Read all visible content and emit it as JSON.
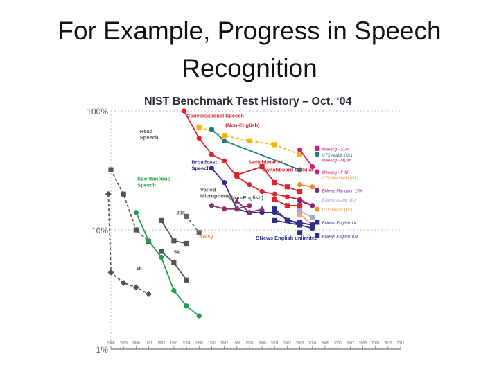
{
  "slide": {
    "title_line1": "For Example, Progress in Speech",
    "title_line2": "Recognition"
  },
  "chart_data": {
    "type": "line",
    "title": "NIST Benchmark Test History – Oct. ‘04",
    "yscale": "log",
    "ylim": [
      1,
      100
    ],
    "y_ticks": [
      {
        "value": 100,
        "label": "100%"
      },
      {
        "value": 10,
        "label": "10%"
      },
      {
        "value": 1,
        "label": "1%"
      }
    ],
    "x_years": [
      "1988",
      "1989",
      "1990",
      "1991",
      "1992",
      "1993",
      "1994",
      "1995",
      "1996",
      "1997",
      "1998",
      "1999",
      "2000",
      "2001",
      "2002",
      "2003",
      "2004",
      "2005",
      "2006",
      "2007",
      "2008",
      "2009",
      "2010",
      "2011"
    ],
    "colors": {
      "conversational": "#d7262e",
      "read": "#555555",
      "spontaneous": "#1e9e4a",
      "broadcast": "#2e2e8a",
      "varied": "#8a2e6e",
      "noisy": "#666666",
      "ctsarabic": "#1a7f7a",
      "meeting": "#d6187e",
      "yellow": "#f7b500",
      "orange": "#f18a2a",
      "mandarin": "#7a2a8a",
      "ctschinese": "#f3a07a",
      "lavender": "#a8a8d6",
      "grid": "#bdbdbd"
    },
    "series": [
      {
        "key": "conversational",
        "name": "Conversational Speech",
        "color_key": "conversational",
        "marker": "circle",
        "dashed": false,
        "points": [
          [
            1993.8,
            100
          ],
          [
            1995,
            59
          ],
          [
            1996,
            43
          ],
          [
            1997,
            38
          ],
          [
            1998,
            28
          ],
          [
            1999,
            24
          ],
          [
            2000,
            21
          ],
          [
            2001,
            20
          ],
          [
            2002,
            19
          ],
          [
            2003,
            18
          ],
          [
            2004,
            16
          ]
        ]
      },
      {
        "key": "switchboard-ii",
        "name": "Switchboard II",
        "color_key": "conversational",
        "marker": "square",
        "dashed": false,
        "points": [
          [
            1998,
            29
          ],
          [
            2000,
            34
          ],
          [
            2001,
            25
          ],
          [
            2002,
            23
          ],
          [
            2003,
            21
          ]
        ]
      },
      {
        "key": "switchboard-cellular",
        "name": "Switchboard Cellular",
        "color_key": "conversational",
        "marker": "square",
        "dashed": false,
        "points": [
          [
            2001,
            18
          ],
          [
            2002,
            16
          ],
          [
            2003,
            16
          ]
        ]
      },
      {
        "key": "non-english-conv",
        "name": "(Non-English)",
        "color_key": "yellow",
        "marker": "square",
        "dashed": true,
        "points": [
          [
            1995,
            73
          ],
          [
            1997,
            62
          ],
          [
            1999,
            56
          ],
          [
            2001,
            52
          ],
          [
            2003,
            43
          ]
        ]
      },
      {
        "key": "cts-arabic",
        "name": "CTS Arabic (UL)",
        "color_key": "ctsarabic",
        "marker": "circle",
        "dashed": false,
        "points": [
          [
            1996,
            70
          ],
          [
            1997,
            56
          ],
          [
            2003,
            32
          ]
        ]
      },
      {
        "key": "read-speech",
        "name": "Read Speech",
        "color_key": "read",
        "marker": "square",
        "dashed": true,
        "points": [
          [
            1988,
            32
          ],
          [
            1989,
            20
          ],
          [
            1990,
            10
          ],
          [
            1991,
            8
          ]
        ]
      },
      {
        "key": "read-20k",
        "name": "20k",
        "color_key": "read",
        "marker": "square",
        "dashed": false,
        "points": [
          [
            1992,
            12
          ],
          [
            1993,
            8.1
          ],
          [
            1994,
            7.7
          ]
        ]
      },
      {
        "key": "read-5k",
        "name": "5k",
        "color_key": "read",
        "marker": "square",
        "dashed": false,
        "points": [
          [
            1992,
            6.6
          ],
          [
            1993,
            5.3
          ],
          [
            1994,
            3.8
          ]
        ]
      },
      {
        "key": "read-1k",
        "name": "1k",
        "color_key": "read",
        "marker": "diamond",
        "dashed": true,
        "points": [
          [
            1987.8,
            20
          ],
          [
            1988,
            4.4
          ],
          [
            1989,
            3.6
          ],
          [
            1990,
            3.3
          ],
          [
            1991,
            2.9
          ]
        ]
      },
      {
        "key": "spontaneous",
        "name": "Spontaneous Speech",
        "color_key": "spontaneous",
        "marker": "circle",
        "dashed": false,
        "points": [
          [
            1990,
            14
          ],
          [
            1991,
            8.1
          ],
          [
            1992,
            5.9
          ],
          [
            1993,
            3.1
          ],
          [
            1994,
            2.3
          ],
          [
            1995,
            1.9
          ]
        ]
      },
      {
        "key": "broadcast",
        "name": "Broadcast Speech",
        "color_key": "broadcast",
        "marker": "circle",
        "dashed": false,
        "points": [
          [
            1996,
            33
          ],
          [
            1997,
            25
          ],
          [
            1998,
            15
          ],
          [
            1999,
            14
          ],
          [
            2000,
            14
          ],
          [
            2001,
            14
          ],
          [
            2003,
            11
          ],
          [
            2004,
            10.3
          ]
        ]
      },
      {
        "key": "varied-mics",
        "name": "Varied Microphones",
        "color_key": "varied",
        "marker": "circle",
        "dashed": false,
        "points": [
          [
            1996,
            16
          ],
          [
            1997,
            15
          ],
          [
            1998,
            15
          ],
          [
            1999,
            16
          ]
        ]
      },
      {
        "key": "non-english-bn",
        "name": "(Non-English)",
        "color_key": "varied",
        "marker": "triangle",
        "dashed": false,
        "points": [
          [
            1998,
            17.5
          ],
          [
            1999,
            14
          ],
          [
            2000,
            15
          ]
        ]
      },
      {
        "key": "noisy",
        "name": "Noisy",
        "color_key": "noisy",
        "marker": "square",
        "dashed": true,
        "points": [
          [
            1994,
            13
          ],
          [
            1995,
            9.5
          ]
        ]
      },
      {
        "key": "meeting-sdm",
        "name": "Meeting - SDM",
        "color_key": "meeting",
        "marker": "circle",
        "dashed": false,
        "points": [
          [
            2003,
            47
          ],
          [
            2004,
            34
          ]
        ]
      },
      {
        "key": "cts-mandarin",
        "name": "CTS Mandarin (UL)",
        "color_key": "orange",
        "marker": "circle",
        "dashed": false,
        "points": [
          [
            2003,
            24
          ],
          [
            2004,
            23
          ]
        ]
      },
      {
        "key": "bnews-mandarin",
        "name": "BNews Mandarin 10X",
        "color_key": "mandarin",
        "marker": "circle",
        "dashed": false,
        "points": [
          [
            2003,
            17.5
          ],
          [
            2004,
            16
          ]
        ]
      },
      {
        "key": "bnews-arabic",
        "name": "BNews Arabic 10X",
        "color_key": "lavender",
        "marker": "square",
        "dashed": false,
        "points": [
          [
            2003,
            14.5
          ],
          [
            2004,
            12.7
          ]
        ]
      },
      {
        "key": "cts-fisher",
        "name": "CTS Fisher (UL)",
        "color_key": "ctschinese",
        "marker": "square",
        "dashed": false,
        "points": [
          [
            2003,
            13.5
          ],
          [
            2004,
            11
          ]
        ]
      },
      {
        "key": "bnews-english-1x",
        "name": "BNews English 1X",
        "color_key": "broadcast",
        "marker": "square",
        "dashed": false,
        "points": [
          [
            2001,
            15
          ],
          [
            2002,
            12
          ],
          [
            2003,
            11.5
          ],
          [
            2004,
            11
          ]
        ]
      },
      {
        "key": "bnews-english-unlimited",
        "name": "BNews English unlimited",
        "color_key": "broadcast",
        "marker": "square",
        "dashed": false,
        "points": [
          [
            2001,
            12
          ],
          [
            2003,
            11
          ]
        ]
      },
      {
        "key": "bnews-english-10x",
        "name": "BNews English 10X",
        "color_key": "broadcast",
        "marker": "square",
        "dashed": false,
        "points": [
          [
            2003,
            9.5
          ]
        ]
      }
    ],
    "annotations": [
      {
        "key": "ann-read",
        "lines": [
          "Read",
          "Speech"
        ],
        "color_key": "read",
        "year": 1990.3,
        "value": 65
      },
      {
        "key": "ann-conversational",
        "lines": [
          "Conversational Speech"
        ],
        "color_key": "conversational",
        "year": 1994.0,
        "value": 88
      },
      {
        "key": "ann-non-english-conv",
        "lines": [
          "(Non-English)"
        ],
        "color_key": "conversational",
        "year": 1997.1,
        "value": 73
      },
      {
        "key": "ann-broadcast",
        "lines": [
          "Broadcast",
          "Speech"
        ],
        "color_key": "broadcast",
        "year": 1994.4,
        "value": 36
      },
      {
        "key": "ann-spontaneous",
        "lines": [
          "Spontaneous",
          "Speech"
        ],
        "color_key": "spontaneous",
        "year": 1990.1,
        "value": 26
      },
      {
        "key": "ann-varied",
        "lines": [
          "Varied",
          "Microphones"
        ],
        "color_key": "read",
        "year": 1995.1,
        "value": 21
      },
      {
        "key": "ann-non-english-bn",
        "lines": [
          "(Non-English)"
        ],
        "color_key": "read",
        "year": 1997.4,
        "value": 18
      },
      {
        "key": "ann-switchboard-ii",
        "lines": [
          "Switchboard II"
        ],
        "color_key": "conversational",
        "year": 1998.9,
        "value": 36
      },
      {
        "key": "ann-switchboard-cellular",
        "lines": [
          "Switchboard Cellular"
        ],
        "color_key": "conversational",
        "year": 2000.0,
        "value": 31
      },
      {
        "key": "ann-20k",
        "lines": [
          "20k"
        ],
        "color_key": "read",
        "year": 1993.2,
        "value": 13.5
      },
      {
        "key": "ann-5k",
        "lines": [
          "5k"
        ],
        "color_key": "read",
        "year": 1993.0,
        "value": 6.3
      },
      {
        "key": "ann-1k",
        "lines": [
          "1k"
        ],
        "color_key": "read",
        "year": 1990.0,
        "value": 4.6
      },
      {
        "key": "ann-noisy",
        "lines": [
          "Noisy"
        ],
        "color_key": "orange",
        "year": 1995.0,
        "value": 8.5
      },
      {
        "key": "ann-bnews-unlimited",
        "lines": [
          "BNews English unlimited"
        ],
        "color_key": "broadcast",
        "year": 1999.5,
        "value": 8.3
      }
    ],
    "legend": [
      {
        "key": "leg-meeting-sdm",
        "label": "Meeting - SDM",
        "color_key": "meeting",
        "marker": "square",
        "value": 47
      },
      {
        "key": "leg-cts-arabic",
        "label": "CTS Arabic (UL)",
        "color_key": "ctsarabic",
        "marker": "circle",
        "value": 42
      },
      {
        "key": "leg-meeting-mdm",
        "label": "Meeting - MDM",
        "color_key": "meeting",
        "marker": "none",
        "value": 38
      },
      {
        "key": "leg-meeting-ihm",
        "label": "Meeting - IHM",
        "color_key": "meeting",
        "marker": "circle",
        "value": 30
      },
      {
        "key": "leg-cts-mandarin",
        "label": "CTS Mandarin (UL)",
        "color_key": "orange",
        "marker": "none",
        "value": 27
      },
      {
        "key": "leg-bnews-mandarin",
        "label": "BNews Mandarin 10X",
        "color_key": "mandarin",
        "marker": "circle",
        "value": 21
      },
      {
        "key": "leg-bnews-arabic",
        "label": "BNews Arabic 10X",
        "color_key": "lavender",
        "marker": "none",
        "value": 17.5
      },
      {
        "key": "leg-cts-fisher",
        "label": "CTS Fisher (UL)",
        "color_key": "orange",
        "marker": "circle",
        "value": 14.5
      },
      {
        "key": "leg-bnews-english-1x",
        "label": "BNews English 1X",
        "color_key": "broadcast",
        "marker": "square",
        "value": 11.3
      },
      {
        "key": "leg-bnews-english-10x",
        "label": "BNews English 10X",
        "color_key": "broadcast",
        "marker": "square",
        "value": 8.7
      }
    ]
  }
}
